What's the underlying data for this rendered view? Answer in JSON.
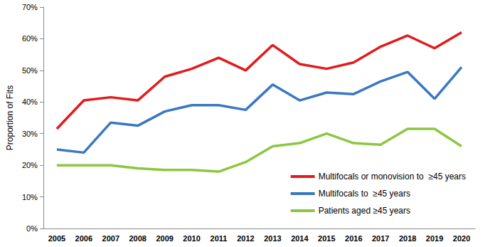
{
  "chart_data": {
    "type": "line",
    "y_label": "Proportion of Fits",
    "categories": [
      "2005",
      "2006",
      "2007",
      "2008",
      "2009",
      "2010",
      "2011",
      "2012",
      "2013",
      "2014",
      "2015",
      "2016",
      "2017",
      "2018",
      "2019",
      "2020"
    ],
    "series": [
      {
        "name": "Multifocals or monovision to  ≥45 years",
        "color": "#e31a1c",
        "values": [
          31.5,
          40.5,
          41.5,
          40.5,
          48,
          50.5,
          54,
          50,
          58,
          52,
          50.5,
          52.5,
          57.5,
          61,
          57,
          62
        ]
      },
      {
        "name": "Multifocals to  ≥45 years",
        "color": "#3a78c2",
        "values": [
          25,
          24,
          33.5,
          32.5,
          37,
          39,
          39,
          37.5,
          45.5,
          40.5,
          43,
          42.5,
          46.5,
          49.5,
          41,
          51
        ]
      },
      {
        "name": "Patients aged ≥45 years",
        "color": "#8dc63f",
        "values": [
          20,
          20,
          20,
          19,
          18.5,
          18.5,
          18,
          21,
          26,
          27,
          30,
          27,
          26.5,
          31.5,
          31.5,
          26
        ]
      }
    ],
    "ylim": [
      0,
      70
    ],
    "yticks": [
      {
        "value": 0,
        "label": "0%"
      },
      {
        "value": 10,
        "label": "10%"
      },
      {
        "value": 20,
        "label": "20%"
      },
      {
        "value": 30,
        "label": "30%"
      },
      {
        "value": 40,
        "label": "40%"
      },
      {
        "value": 50,
        "label": "50%"
      },
      {
        "value": 60,
        "label": "60%"
      },
      {
        "value": 70,
        "label": "70%"
      }
    ],
    "grid": false,
    "legend": "lower right"
  }
}
